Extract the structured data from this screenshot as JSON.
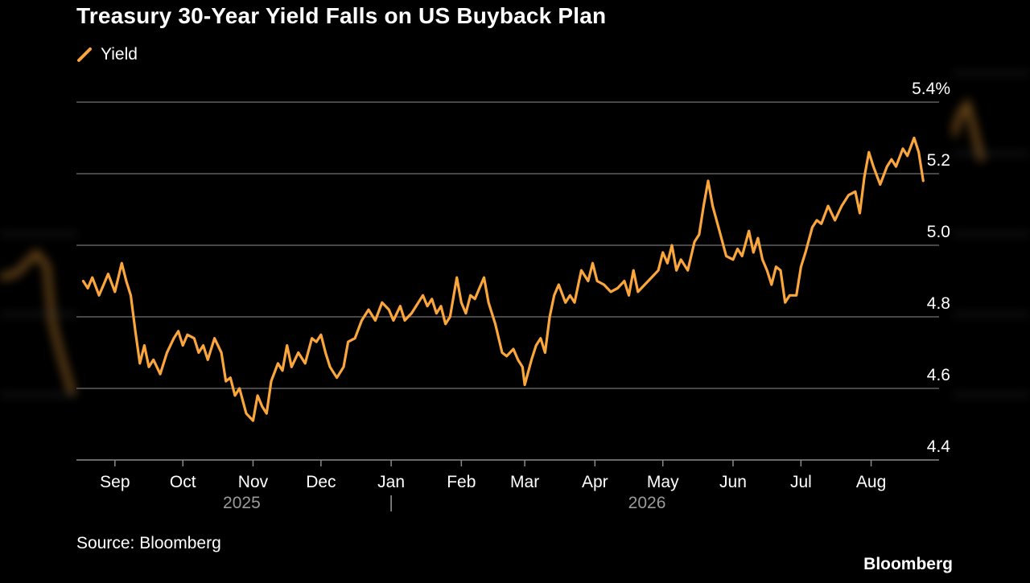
{
  "chart_data": {
    "type": "line",
    "title": "Treasury 30-Year Yield Falls on US Buyback Plan",
    "legend": [
      {
        "label": "Yield",
        "color": "#fba63c"
      }
    ],
    "legend_placement": "top-left",
    "ylim": [
      4.4,
      5.4
    ],
    "y_ticks": [
      4.4,
      4.6,
      4.8,
      5.0,
      5.2,
      5.4
    ],
    "y_tick_labels": [
      "4.4",
      "4.6",
      "4.8",
      "5.0",
      "5.2",
      "5.4%"
    ],
    "y_axis_side": "right",
    "grid": "horizontal",
    "x_range": [
      "2025-08-15",
      "2026-08-31"
    ],
    "x_ticks": [
      {
        "label": "Sep",
        "date": "2025-09-01"
      },
      {
        "label": "Oct",
        "date": "2025-10-01"
      },
      {
        "label": "Nov",
        "date": "2025-11-01"
      },
      {
        "label": "Dec",
        "date": "2025-12-01"
      },
      {
        "label": "Jan",
        "date": "2026-01-01"
      },
      {
        "label": "Feb",
        "date": "2026-02-01"
      },
      {
        "label": "Mar",
        "date": "2026-03-01"
      },
      {
        "label": "Apr",
        "date": "2026-04-01"
      },
      {
        "label": "May",
        "date": "2026-05-01"
      },
      {
        "label": "Jun",
        "date": "2026-06-01"
      },
      {
        "label": "Jul",
        "date": "2026-07-01"
      },
      {
        "label": "Aug",
        "date": "2026-08-01"
      }
    ],
    "year_labels": [
      {
        "label": "2025",
        "date": "2025-10-27"
      },
      {
        "label": "2026",
        "date": "2026-04-24"
      }
    ],
    "year_divider_date": "2026-01-01",
    "series": [
      {
        "name": "Yield",
        "color": "#fba63c",
        "points": [
          [
            "2025-08-18",
            4.9
          ],
          [
            "2025-08-20",
            4.88
          ],
          [
            "2025-08-22",
            4.91
          ],
          [
            "2025-08-25",
            4.86
          ],
          [
            "2025-08-27",
            4.89
          ],
          [
            "2025-08-29",
            4.92
          ],
          [
            "2025-09-01",
            4.87
          ],
          [
            "2025-09-04",
            4.95
          ],
          [
            "2025-09-06",
            4.9
          ],
          [
            "2025-09-08",
            4.86
          ],
          [
            "2025-09-10",
            4.76
          ],
          [
            "2025-09-12",
            4.67
          ],
          [
            "2025-09-14",
            4.72
          ],
          [
            "2025-09-16",
            4.66
          ],
          [
            "2025-09-18",
            4.68
          ],
          [
            "2025-09-21",
            4.64
          ],
          [
            "2025-09-24",
            4.7
          ],
          [
            "2025-09-27",
            4.74
          ],
          [
            "2025-09-29",
            4.76
          ],
          [
            "2025-10-01",
            4.72
          ],
          [
            "2025-10-03",
            4.75
          ],
          [
            "2025-10-06",
            4.74
          ],
          [
            "2025-10-08",
            4.7
          ],
          [
            "2025-10-10",
            4.72
          ],
          [
            "2025-10-12",
            4.68
          ],
          [
            "2025-10-15",
            4.74
          ],
          [
            "2025-10-18",
            4.7
          ],
          [
            "2025-10-20",
            4.62
          ],
          [
            "2025-10-22",
            4.63
          ],
          [
            "2025-10-24",
            4.58
          ],
          [
            "2025-10-26",
            4.6
          ],
          [
            "2025-10-29",
            4.53
          ],
          [
            "2025-11-01",
            4.51
          ],
          [
            "2025-11-03",
            4.58
          ],
          [
            "2025-11-05",
            4.55
          ],
          [
            "2025-11-07",
            4.53
          ],
          [
            "2025-11-09",
            4.62
          ],
          [
            "2025-11-12",
            4.67
          ],
          [
            "2025-11-14",
            4.65
          ],
          [
            "2025-11-16",
            4.72
          ],
          [
            "2025-11-18",
            4.66
          ],
          [
            "2025-11-21",
            4.7
          ],
          [
            "2025-11-24",
            4.67
          ],
          [
            "2025-11-27",
            4.74
          ],
          [
            "2025-11-29",
            4.73
          ],
          [
            "2025-12-01",
            4.75
          ],
          [
            "2025-12-03",
            4.7
          ],
          [
            "2025-12-05",
            4.66
          ],
          [
            "2025-12-08",
            4.63
          ],
          [
            "2025-12-11",
            4.66
          ],
          [
            "2025-12-13",
            4.73
          ],
          [
            "2025-12-16",
            4.74
          ],
          [
            "2025-12-19",
            4.79
          ],
          [
            "2025-12-22",
            4.82
          ],
          [
            "2025-12-25",
            4.79
          ],
          [
            "2025-12-28",
            4.84
          ],
          [
            "2025-12-31",
            4.82
          ],
          [
            "2026-01-02",
            4.79
          ],
          [
            "2026-01-05",
            4.83
          ],
          [
            "2026-01-07",
            4.79
          ],
          [
            "2026-01-10",
            4.81
          ],
          [
            "2026-01-13",
            4.84
          ],
          [
            "2026-01-15",
            4.86
          ],
          [
            "2026-01-17",
            4.83
          ],
          [
            "2026-01-19",
            4.85
          ],
          [
            "2026-01-21",
            4.81
          ],
          [
            "2026-01-23",
            4.83
          ],
          [
            "2026-01-25",
            4.78
          ],
          [
            "2026-01-27",
            4.8
          ],
          [
            "2026-01-30",
            4.91
          ],
          [
            "2026-02-01",
            4.84
          ],
          [
            "2026-02-03",
            4.81
          ],
          [
            "2026-02-05",
            4.86
          ],
          [
            "2026-02-07",
            4.85
          ],
          [
            "2026-02-09",
            4.88
          ],
          [
            "2026-02-11",
            4.91
          ],
          [
            "2026-02-13",
            4.84
          ],
          [
            "2026-02-16",
            4.78
          ],
          [
            "2026-02-19",
            4.7
          ],
          [
            "2026-02-21",
            4.69
          ],
          [
            "2026-02-24",
            4.71
          ],
          [
            "2026-02-26",
            4.68
          ],
          [
            "2026-02-28",
            4.66
          ],
          [
            "2026-03-01",
            4.61
          ],
          [
            "2026-03-04",
            4.68
          ],
          [
            "2026-03-06",
            4.72
          ],
          [
            "2026-03-08",
            4.74
          ],
          [
            "2026-03-10",
            4.7
          ],
          [
            "2026-03-12",
            4.8
          ],
          [
            "2026-03-14",
            4.86
          ],
          [
            "2026-03-16",
            4.89
          ],
          [
            "2026-03-19",
            4.84
          ],
          [
            "2026-03-21",
            4.86
          ],
          [
            "2026-03-23",
            4.84
          ],
          [
            "2026-03-26",
            4.93
          ],
          [
            "2026-03-29",
            4.9
          ],
          [
            "2026-03-31",
            4.95
          ],
          [
            "2026-04-02",
            4.9
          ],
          [
            "2026-04-05",
            4.89
          ],
          [
            "2026-04-08",
            4.87
          ],
          [
            "2026-04-11",
            4.88
          ],
          [
            "2026-04-14",
            4.9
          ],
          [
            "2026-04-16",
            4.86
          ],
          [
            "2026-04-18",
            4.93
          ],
          [
            "2026-04-20",
            4.87
          ],
          [
            "2026-04-23",
            4.89
          ],
          [
            "2026-04-26",
            4.91
          ],
          [
            "2026-04-29",
            4.93
          ],
          [
            "2026-05-01",
            4.98
          ],
          [
            "2026-05-03",
            4.95
          ],
          [
            "2026-05-05",
            5.0
          ],
          [
            "2026-05-07",
            4.93
          ],
          [
            "2026-05-09",
            4.96
          ],
          [
            "2026-05-12",
            4.93
          ],
          [
            "2026-05-15",
            5.01
          ],
          [
            "2026-05-17",
            5.03
          ],
          [
            "2026-05-19",
            5.11
          ],
          [
            "2026-05-21",
            5.18
          ],
          [
            "2026-05-23",
            5.11
          ],
          [
            "2026-05-26",
            5.04
          ],
          [
            "2026-05-29",
            4.97
          ],
          [
            "2026-06-01",
            4.96
          ],
          [
            "2026-06-03",
            4.99
          ],
          [
            "2026-06-05",
            4.97
          ],
          [
            "2026-06-08",
            5.04
          ],
          [
            "2026-06-10",
            4.98
          ],
          [
            "2026-06-12",
            5.02
          ],
          [
            "2026-06-14",
            4.96
          ],
          [
            "2026-06-16",
            4.93
          ],
          [
            "2026-06-18",
            4.89
          ],
          [
            "2026-06-20",
            4.94
          ],
          [
            "2026-06-22",
            4.93
          ],
          [
            "2026-06-24",
            4.84
          ],
          [
            "2026-06-26",
            4.86
          ],
          [
            "2026-06-29",
            4.86
          ],
          [
            "2026-07-01",
            4.94
          ],
          [
            "2026-07-03",
            4.98
          ],
          [
            "2026-07-06",
            5.05
          ],
          [
            "2026-07-08",
            5.07
          ],
          [
            "2026-07-10",
            5.06
          ],
          [
            "2026-07-13",
            5.11
          ],
          [
            "2026-07-16",
            5.07
          ],
          [
            "2026-07-19",
            5.11
          ],
          [
            "2026-07-22",
            5.14
          ],
          [
            "2026-07-25",
            5.15
          ],
          [
            "2026-07-27",
            5.09
          ],
          [
            "2026-07-29",
            5.19
          ],
          [
            "2026-07-31",
            5.26
          ],
          [
            "2026-08-02",
            5.22
          ],
          [
            "2026-08-05",
            5.17
          ],
          [
            "2026-08-08",
            5.22
          ],
          [
            "2026-08-10",
            5.24
          ],
          [
            "2026-08-12",
            5.22
          ],
          [
            "2026-08-15",
            5.27
          ],
          [
            "2026-08-17",
            5.25
          ],
          [
            "2026-08-20",
            5.3
          ],
          [
            "2026-08-22",
            5.26
          ],
          [
            "2026-08-24",
            5.18
          ]
        ]
      }
    ],
    "source": "Source: Bloomberg",
    "brand": "Bloomberg"
  }
}
